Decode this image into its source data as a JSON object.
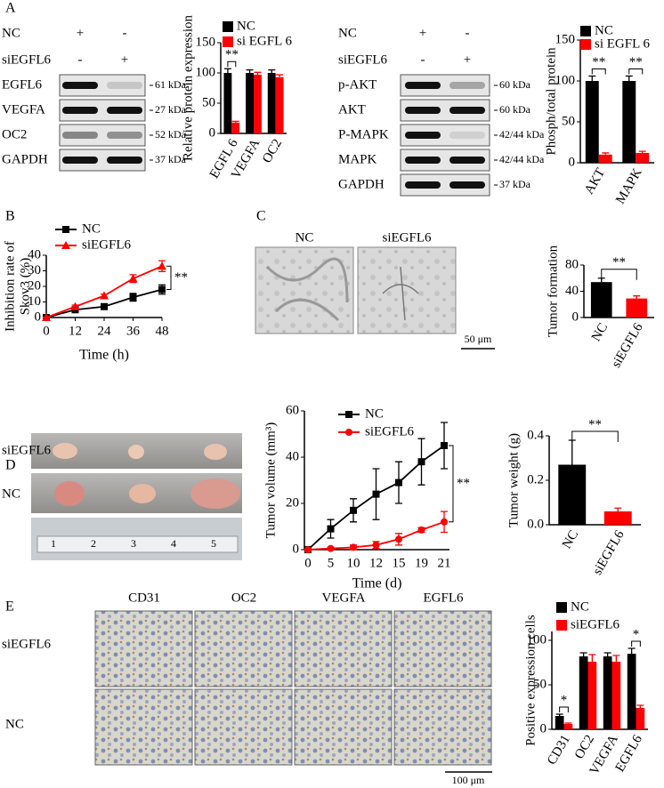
{
  "figure": {
    "panel_labels": [
      "A",
      "B",
      "C",
      "D",
      "E"
    ]
  },
  "blots": [
    {
      "conditions": [
        {
          "name": "NC",
          "marks": [
            "+",
            "-"
          ]
        },
        {
          "name": "siEGFL6",
          "marks": [
            "-",
            "+"
          ]
        }
      ],
      "rows": [
        {
          "protein": "EGFL6",
          "size": "61 kDa"
        },
        {
          "protein": "VEGFA",
          "size": "27 kDa"
        },
        {
          "protein": "OC2",
          "size": "52 kDa"
        },
        {
          "protein": "GAPDH",
          "size": "37 kDa"
        }
      ]
    },
    {
      "conditions": [
        {
          "name": "NC",
          "marks": [
            "+",
            "-"
          ]
        },
        {
          "name": "siEGFL6",
          "marks": [
            "-",
            "+"
          ]
        }
      ],
      "rows": [
        {
          "protein": "p-AKT",
          "size": "60 kDa"
        },
        {
          "protein": "AKT",
          "size": "60 kDa"
        },
        {
          "protein": "P-MAPK",
          "size": "42/44 kDa"
        },
        {
          "protein": "MAPK",
          "size": "42/44 kDa"
        },
        {
          "protein": "GAPDH",
          "size": "37 kDa"
        }
      ]
    }
  ],
  "chart_data": [
    {
      "type": "bar",
      "ylabel": "Relative protein expression",
      "categories": [
        "EGFL 6",
        "VEGFA",
        "OC2"
      ],
      "series": [
        {
          "name": "NC",
          "color": "#000000",
          "values": [
            100,
            100,
            100
          ],
          "errors": [
            7,
            5,
            5
          ]
        },
        {
          "name": "si EGFL 6",
          "color": "#ff0000",
          "values": [
            18,
            97,
            93
          ],
          "errors": [
            2,
            4,
            4
          ]
        }
      ],
      "ylim": [
        0,
        150
      ],
      "yticks": [
        0,
        50,
        100,
        150
      ],
      "annotations": [
        "**"
      ]
    },
    {
      "type": "bar",
      "ylabel": "Phosph/total protein",
      "categories": [
        "AKT",
        "MAPK"
      ],
      "series": [
        {
          "name": "NC",
          "color": "#000000",
          "values": [
            100,
            100
          ],
          "errors": [
            6,
            6
          ]
        },
        {
          "name": "si EGFL 6",
          "color": "#ff0000",
          "values": [
            10,
            12
          ],
          "errors": [
            2,
            2
          ]
        }
      ],
      "ylim": [
        0,
        150
      ],
      "yticks": [
        0,
        50,
        100,
        150
      ],
      "annotations": [
        "**",
        "**"
      ]
    },
    {
      "type": "line",
      "ylabel": [
        "Inhibition rate of",
        "Skov3  (%)"
      ],
      "xlabel": "Time (h)",
      "x": [
        0,
        12,
        24,
        36,
        48
      ],
      "xlim": [
        0,
        48
      ],
      "xticks": [
        0,
        12,
        24,
        36,
        48
      ],
      "series": [
        {
          "name": "NC",
          "color": "#000000",
          "marker": "square",
          "values": [
            0,
            5,
            7,
            13,
            18
          ],
          "errors": [
            0,
            1,
            1,
            2.5,
            3
          ]
        },
        {
          "name": "siEGFL6",
          "color": "#ff0000",
          "marker": "triangle",
          "values": [
            0,
            7,
            14,
            25,
            33
          ],
          "errors": [
            0,
            1,
            1,
            2.5,
            3.5
          ]
        }
      ],
      "ylim": [
        0,
        40
      ],
      "yticks": [
        0,
        10,
        20,
        30,
        40
      ],
      "annotations": [
        "**"
      ]
    },
    {
      "type": "bar",
      "ylabel": "Tumor formation",
      "categories": [
        "NC",
        "siEGFL6"
      ],
      "values": [
        54,
        29
      ],
      "errors": [
        6,
        4
      ],
      "colors": [
        "#000000",
        "#ff0000"
      ],
      "ylim": [
        0,
        80
      ],
      "yticks": [
        0,
        40,
        80
      ],
      "annotations": [
        "**"
      ]
    },
    {
      "type": "line",
      "ylabel": "Tumor volume (mm³)",
      "xlabel": "Time (d)",
      "categories": [
        "0",
        "5",
        "10",
        "12",
        "15",
        "19",
        "21"
      ],
      "series": [
        {
          "name": "NC",
          "color": "#000000",
          "marker": "square",
          "values": [
            0,
            9,
            17,
            24,
            29,
            38,
            45
          ],
          "errors": [
            0,
            4,
            5,
            11,
            9,
            10,
            10
          ]
        },
        {
          "name": "siEGFL6",
          "color": "#ff0000",
          "marker": "circle",
          "values": [
            0,
            0.5,
            1,
            2,
            4.5,
            8.5,
            12
          ],
          "errors": [
            0,
            0.5,
            1,
            1.5,
            2.5,
            1,
            4.5
          ]
        }
      ],
      "ylim": [
        0,
        60
      ],
      "yticks": [
        0,
        20,
        40,
        60
      ],
      "annotations": [
        "**"
      ]
    },
    {
      "type": "bar",
      "ylabel": "Tumor weight  (g)",
      "categories": [
        "NC",
        "siEGFL6"
      ],
      "values": [
        0.27,
        0.06
      ],
      "errors": [
        0.11,
        0.015
      ],
      "colors": [
        "#000000",
        "#ff0000"
      ],
      "ylim": [
        0,
        0.4
      ],
      "yticks": [
        {
          "value": 0,
          "label": "0.0"
        },
        0.2,
        0.4
      ],
      "annotations": [
        "**"
      ]
    },
    {
      "type": "bar",
      "ylabel": "Positive expression cells",
      "categories": [
        "CD31",
        "OC2",
        "VEGFA",
        "EGFL6"
      ],
      "series": [
        {
          "name": "NC",
          "color": "#000000",
          "values": [
            15,
            82,
            82,
            85
          ],
          "errors": [
            2,
            4,
            4,
            6
          ]
        },
        {
          "name": "siEGFL6",
          "color": "#ff0000",
          "values": [
            6,
            76,
            76,
            24
          ],
          "errors": [
            1,
            8,
            7,
            3
          ]
        }
      ],
      "ylim": [
        0,
        110
      ],
      "yticks": [
        0,
        50,
        100
      ],
      "annotations": [
        "*",
        "*"
      ]
    }
  ],
  "micrographs_c": {
    "columns": [
      "NC",
      "siEGFL6"
    ],
    "scale_bar": "50 μm"
  },
  "tumor_photo": {
    "rows": [
      "siEGFL6",
      "NC"
    ],
    "ruler": [
      "1",
      "2",
      "3",
      "4",
      "5"
    ]
  },
  "ihc": {
    "columns": [
      "CD31",
      "OC2",
      "VEGFA",
      "EGFL6"
    ],
    "rows": [
      "siEGFL6",
      "NC"
    ],
    "scale_bar": "100 μm"
  }
}
